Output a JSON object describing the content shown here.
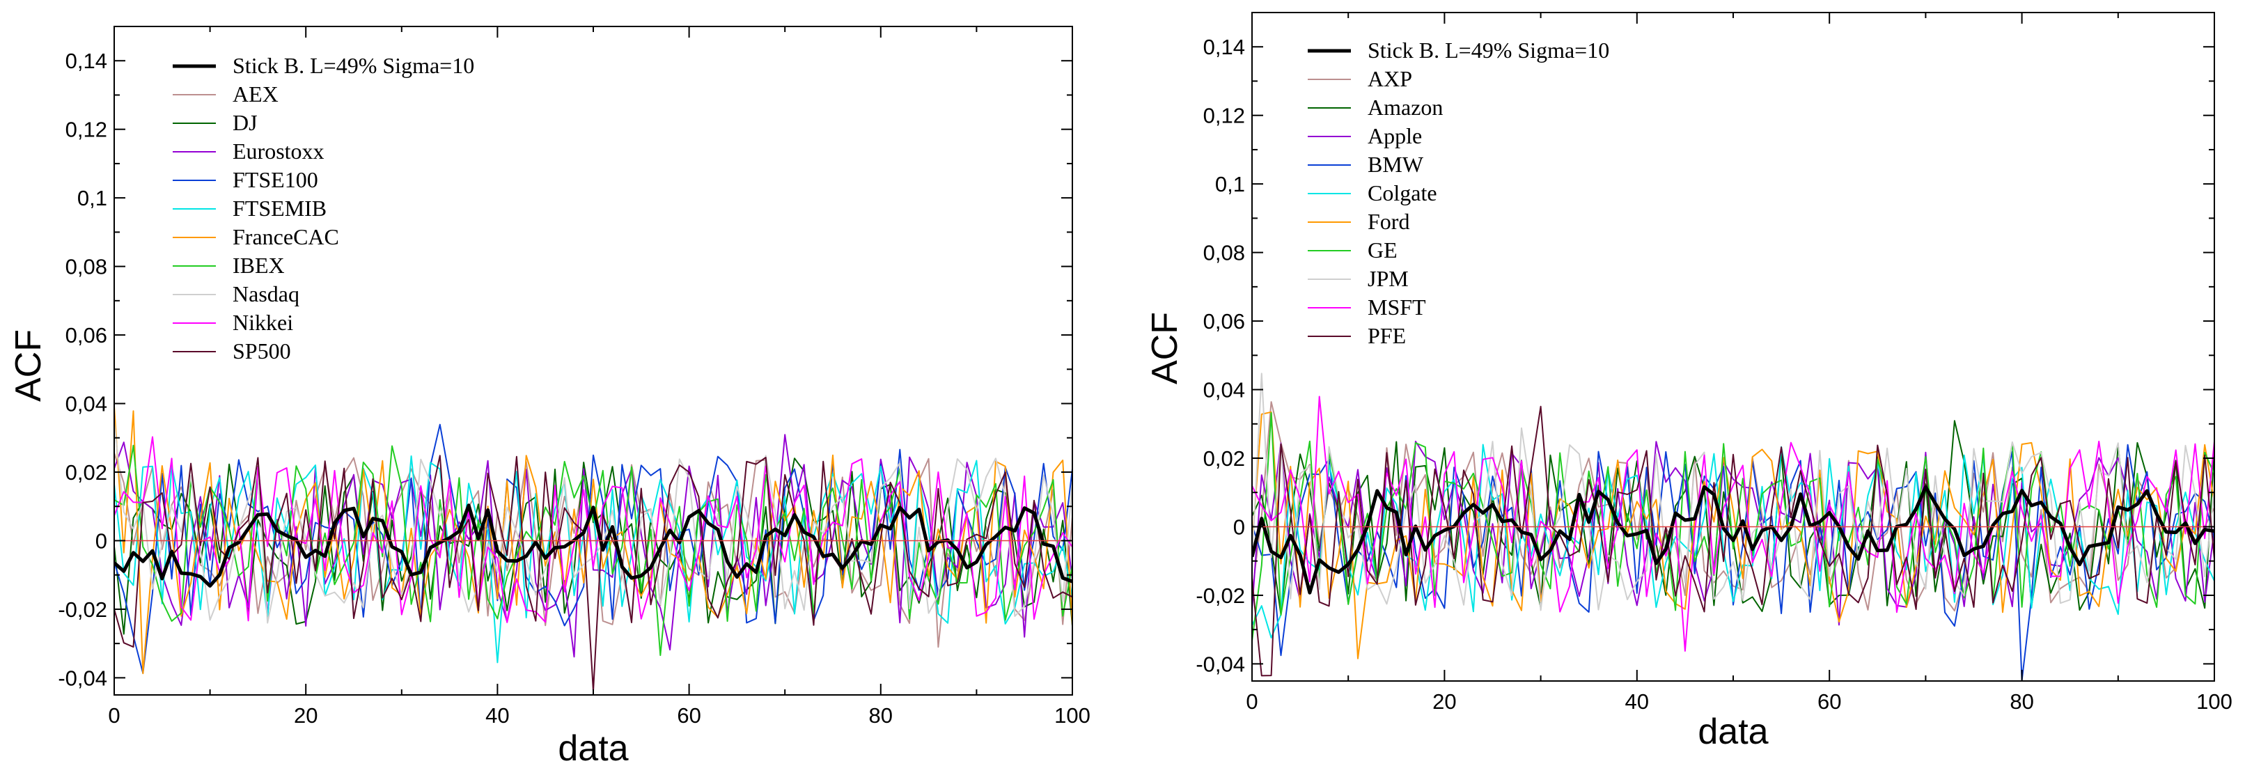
{
  "chart_data": [
    {
      "type": "line",
      "xlabel": "data",
      "ylabel": "ACF",
      "xlim": [
        0,
        100
      ],
      "ylim": [
        -0.045,
        0.15
      ],
      "xticks": [
        0,
        20,
        40,
        60,
        80,
        100
      ],
      "xtick_labels": [
        "0",
        "20",
        "40",
        "60",
        "80",
        "100"
      ],
      "yticks": [
        -0.04,
        -0.02,
        0,
        0.02,
        0.04,
        0.06,
        0.08,
        0.1,
        0.12,
        0.14
      ],
      "ytick_labels": [
        "-0,04",
        "-0,02",
        "0",
        "0,02",
        "0,04",
        "0,06",
        "0,08",
        "0,1",
        "0,12",
        "0,14"
      ],
      "legend_position": "top-left",
      "series": [
        {
          "name": "Stick B. L=49% Sigma=10",
          "color": "#000000",
          "thick": true
        },
        {
          "name": "AEX",
          "color": "#bc8f8f"
        },
        {
          "name": "DJ",
          "color": "#006400"
        },
        {
          "name": "Eurostoxx",
          "color": "#9400d3"
        },
        {
          "name": "FTSE100",
          "color": "#0a3fd6"
        },
        {
          "name": "FTSEMIB",
          "color": "#00e5e5"
        },
        {
          "name": "FranceCAC",
          "color": "#ff9900"
        },
        {
          "name": "IBEX",
          "color": "#22cc22"
        },
        {
          "name": "Nasdaq",
          "color": "#cfcfcf"
        },
        {
          "name": "Nikkei",
          "color": "#ff00ff"
        },
        {
          "name": "SP500",
          "color": "#5a0a2a"
        }
      ]
    },
    {
      "type": "line",
      "xlabel": "data",
      "ylabel": "ACF",
      "xlim": [
        0,
        100
      ],
      "ylim": [
        -0.045,
        0.15
      ],
      "xticks": [
        0,
        20,
        40,
        60,
        80,
        100
      ],
      "xtick_labels": [
        "0",
        "20",
        "40",
        "60",
        "80",
        "100"
      ],
      "yticks": [
        -0.04,
        -0.02,
        0,
        0.02,
        0.04,
        0.06,
        0.08,
        0.1,
        0.12,
        0.14
      ],
      "ytick_labels": [
        "-0,04",
        "-0,02",
        "0",
        "0,02",
        "0,04",
        "0,06",
        "0,08",
        "0,1",
        "0,12",
        "0,14"
      ],
      "legend_position": "top-left",
      "series": [
        {
          "name": "Stick B. L=49% Sigma=10",
          "color": "#000000",
          "thick": true
        },
        {
          "name": "AXP",
          "color": "#bc8f8f"
        },
        {
          "name": "Amazon",
          "color": "#006400"
        },
        {
          "name": "Apple",
          "color": "#9400d3"
        },
        {
          "name": "BMW",
          "color": "#0a3fd6"
        },
        {
          "name": "Colgate",
          "color": "#00e5e5"
        },
        {
          "name": "Ford",
          "color": "#ff9900"
        },
        {
          "name": "GE",
          "color": "#22cc22"
        },
        {
          "name": "JPM",
          "color": "#cfcfcf"
        },
        {
          "name": "MSFT",
          "color": "#ff00ff"
        },
        {
          "name": "PFE",
          "color": "#5a0a2a"
        }
      ]
    }
  ]
}
